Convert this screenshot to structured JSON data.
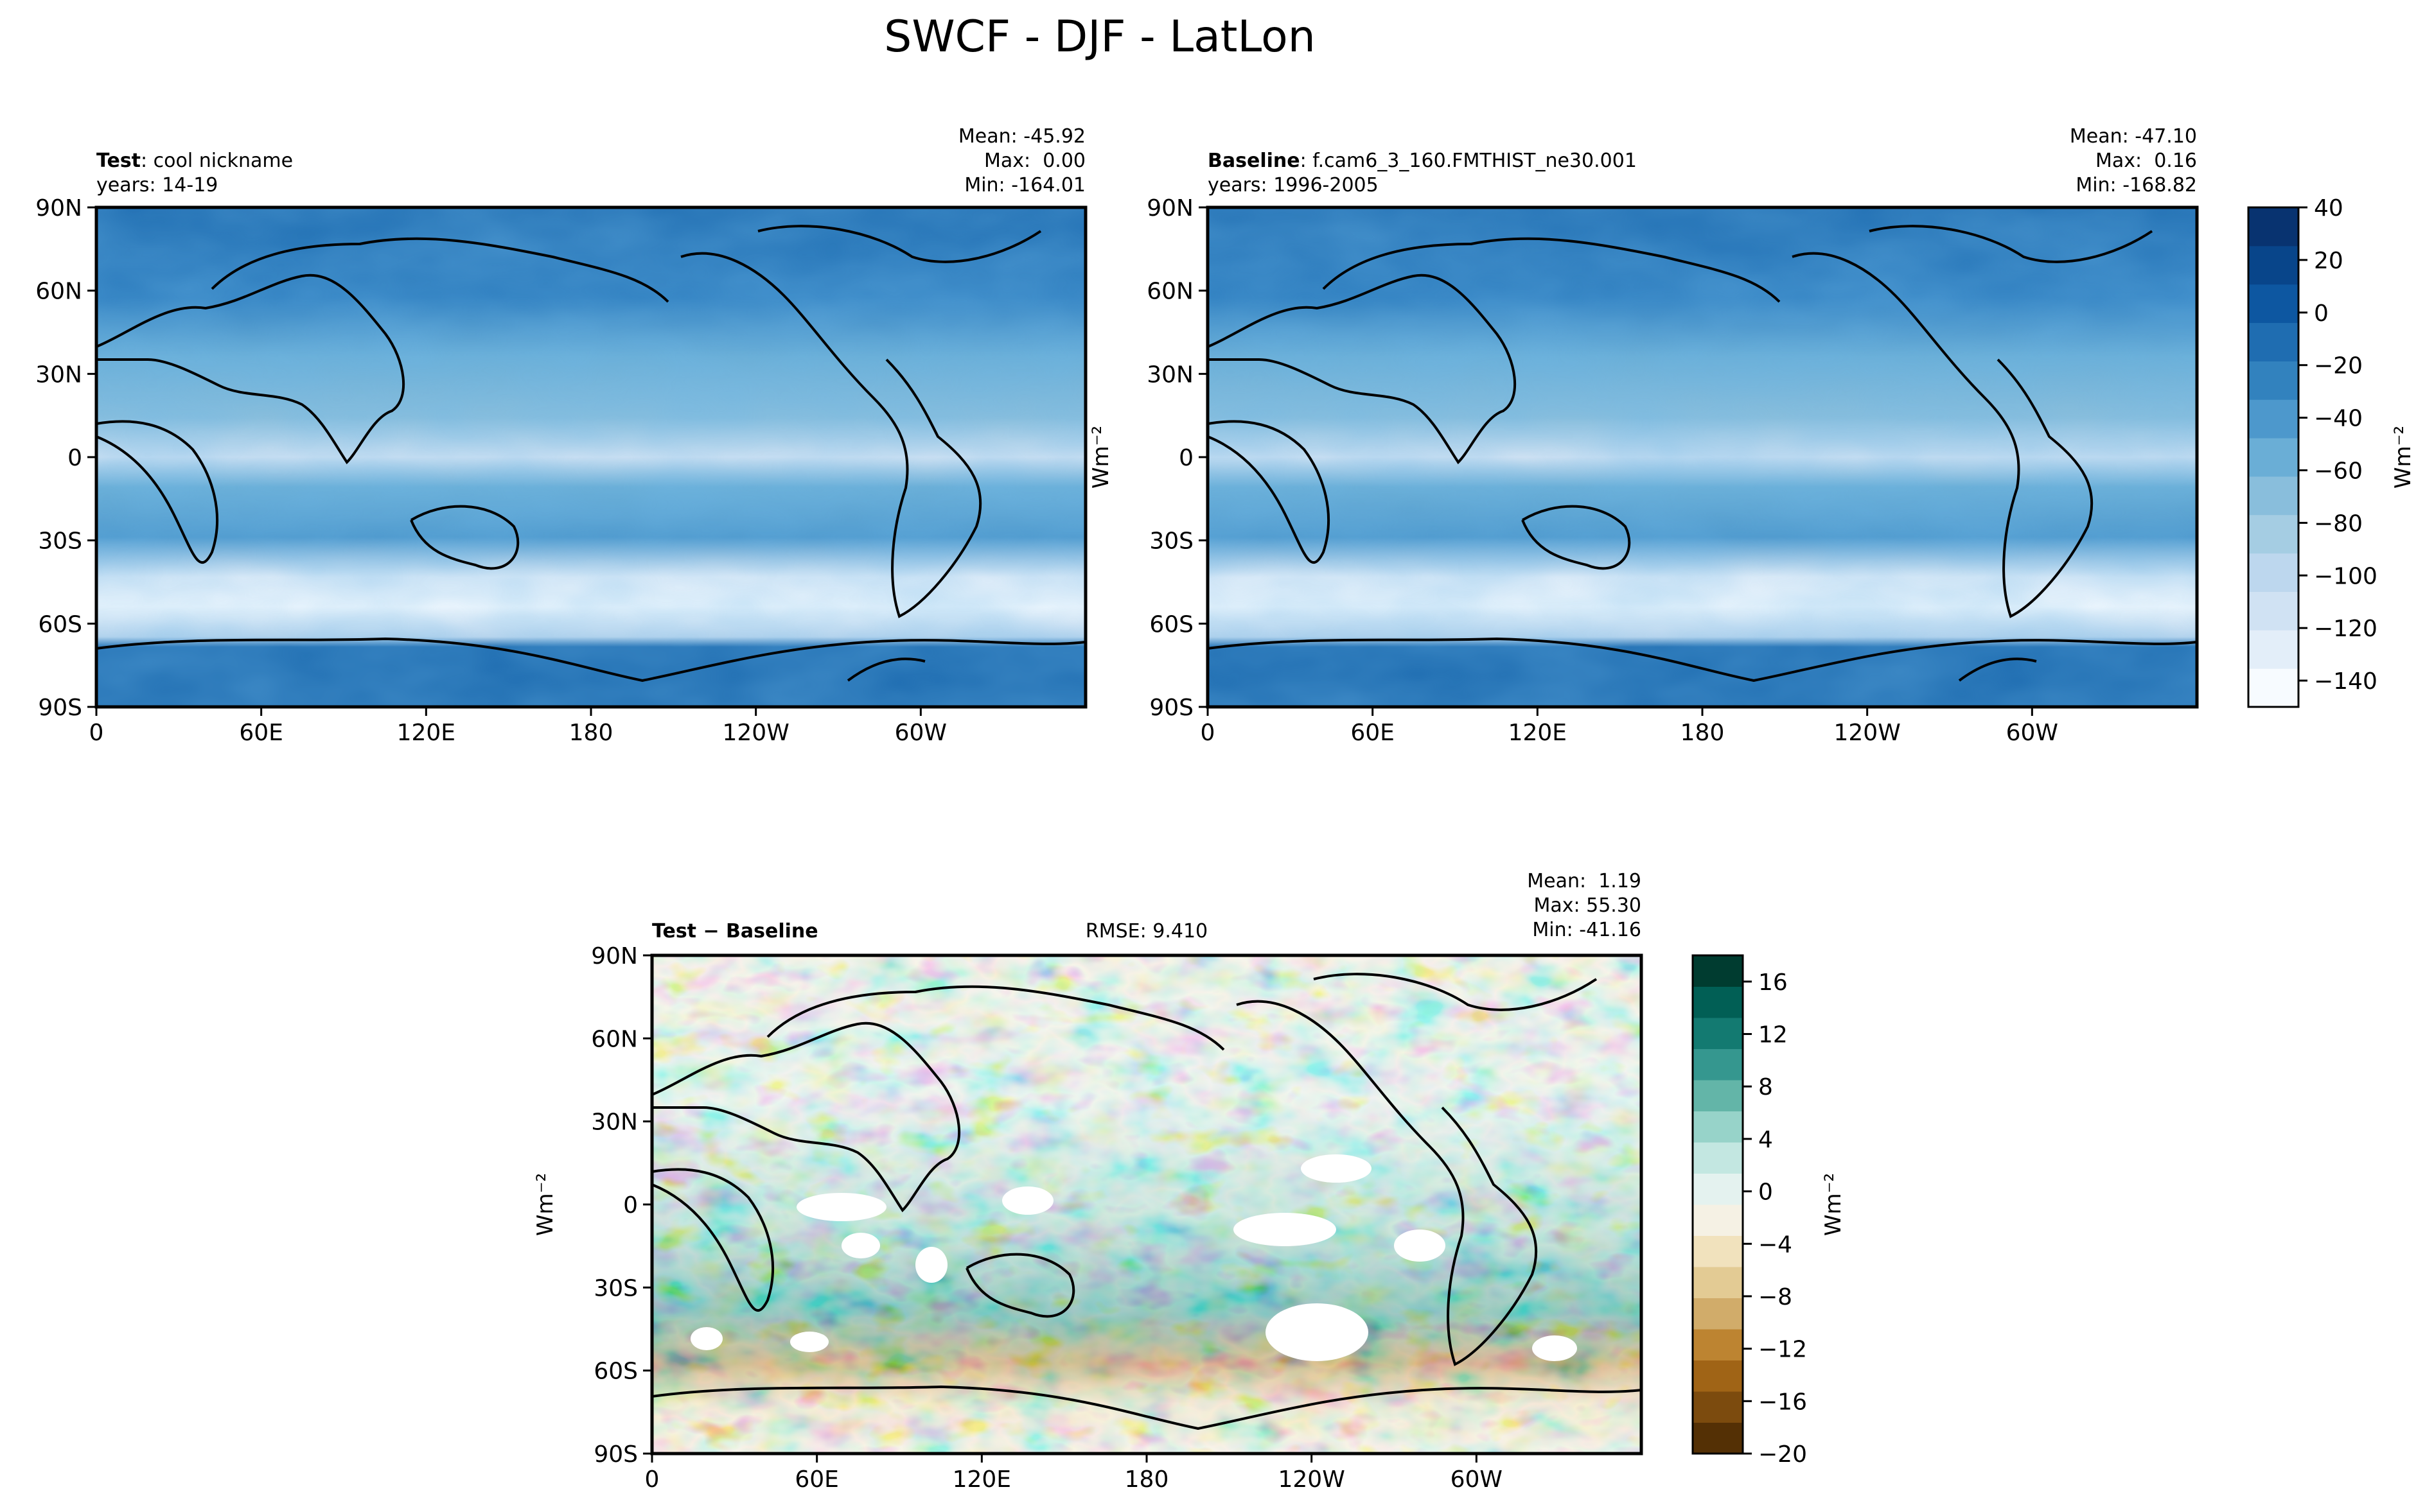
{
  "figure": {
    "title": "SWCF - DJF - LatLon"
  },
  "chart_data": [
    {
      "type": "heatmap",
      "name": "Test",
      "label_bold": "Test",
      "label_rest": ": cool nickname",
      "years": "years: 14-19",
      "stats": {
        "mean": "Mean: -45.92",
        "max": "Max:  0.00",
        "min": "Min: -164.01"
      },
      "x_ticks": [
        "0",
        "60E",
        "120E",
        "180",
        "120W",
        "60W"
      ],
      "y_ticks": [
        "90N",
        "60N",
        "30N",
        "0",
        "30S",
        "60S",
        "90S"
      ],
      "colormap": "Blues_r",
      "zlim": [
        -150,
        40
      ]
    },
    {
      "type": "heatmap",
      "name": "Baseline",
      "label_bold": "Baseline",
      "label_rest": ": f.cam6_3_160.FMTHIST_ne30.001",
      "years": "years: 1996-2005",
      "stats": {
        "mean": "Mean: -47.10",
        "max": "Max:  0.16",
        "min": "Min: -168.82"
      },
      "x_ticks": [
        "0",
        "60E",
        "120E",
        "180",
        "120W",
        "60W"
      ],
      "y_ticks": [
        "90N",
        "60N",
        "30N",
        "0",
        "30S",
        "60S",
        "90S"
      ],
      "ylabel": "Wm⁻²",
      "colormap": "Blues_r",
      "zlim": [
        -150,
        40
      ],
      "colorbar": {
        "ticks": [
          "40",
          "20",
          "0",
          "−20",
          "−40",
          "−60",
          "−80",
          "−100",
          "−120",
          "−140"
        ],
        "label": "Wm⁻²"
      }
    },
    {
      "type": "heatmap",
      "name": "Test - Baseline",
      "label_bold": "Test − Baseline",
      "rmse": "RMSE: 9.410",
      "stats": {
        "mean": "Mean:  1.19",
        "max": "Max: 55.30",
        "min": "Min: -41.16"
      },
      "x_ticks": [
        "0",
        "60E",
        "120E",
        "180",
        "120W",
        "60W"
      ],
      "y_ticks": [
        "90N",
        "60N",
        "30N",
        "0",
        "30S",
        "60S",
        "90S"
      ],
      "ylabel": "Wm⁻²",
      "colormap": "BrBG",
      "zlim": [
        -20,
        18
      ],
      "colorbar": {
        "ticks": [
          "16",
          "12",
          "8",
          "4",
          "0",
          "−4",
          "−8",
          "−12",
          "−16",
          "−20"
        ],
        "label": "Wm⁻²"
      }
    }
  ],
  "colors": {
    "blues": [
      "#f7fbff",
      "#e3eef9",
      "#d0e2f3",
      "#bdd7ee",
      "#a5cde3",
      "#89bedc",
      "#6aaed6",
      "#4d98cc",
      "#3282be",
      "#1f6db1",
      "#0d57a1",
      "#08458a",
      "#083370"
    ],
    "brbg": [
      "#543005",
      "#7c4b0e",
      "#a06416",
      "#bd8431",
      "#d1ac6a",
      "#e3cb94",
      "#f1e2bd",
      "#f5f1e4",
      "#e4f2ef",
      "#c3e7e1",
      "#97d3c9",
      "#63b5a8",
      "#35978f",
      "#137a71",
      "#015f55",
      "#003c30"
    ]
  }
}
